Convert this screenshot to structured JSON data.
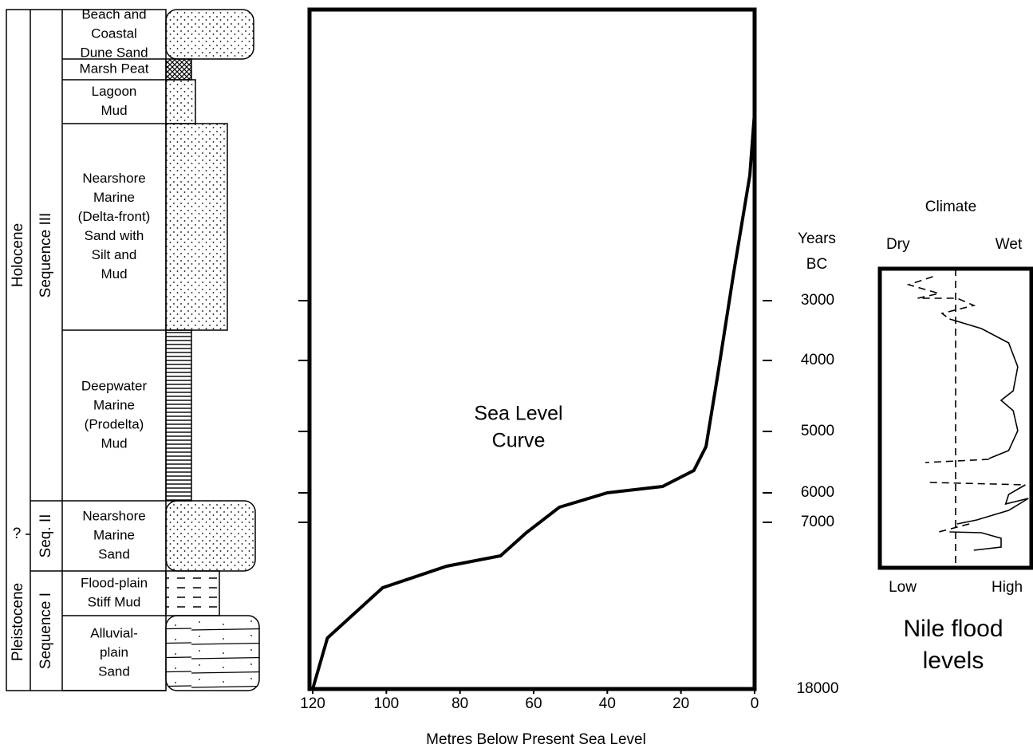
{
  "stratigraphy": {
    "eras": [
      {
        "label": "Holocene"
      },
      {
        "label": "?"
      },
      {
        "label": "Pleistocene"
      }
    ],
    "sequences": [
      {
        "label": "Sequence III"
      },
      {
        "label": "Seq. II"
      },
      {
        "label": "Sequence I"
      }
    ],
    "units": [
      {
        "lines": [
          "Beach and",
          "Coastal",
          "Dune Sand"
        ]
      },
      {
        "lines": [
          "Marsh Peat"
        ]
      },
      {
        "lines": [
          "Lagoon",
          "Mud"
        ]
      },
      {
        "lines": [
          "Nearshore",
          "Marine",
          "(Delta-front)",
          "Sand with",
          "Silt and",
          "Mud"
        ]
      },
      {
        "lines": [
          "Deepwater",
          "Marine",
          "(Prodelta)",
          "Mud"
        ]
      },
      {
        "lines": [
          "Nearshore",
          "Marine",
          "Sand"
        ]
      },
      {
        "lines": [
          "Flood-plain",
          "Stiff Mud"
        ]
      },
      {
        "lines": [
          "Alluvial-",
          "plain",
          "Sand"
        ]
      }
    ]
  },
  "chart_data": [
    {
      "type": "line",
      "title": [
        "Sea Level",
        "Curve"
      ],
      "xlabel": "Metres Below Present Sea Level",
      "ylabel": [
        "Years",
        "BC"
      ],
      "xlim": [
        120,
        0
      ],
      "xticks": [
        120,
        100,
        80,
        60,
        40,
        20,
        0
      ],
      "ylim": [
        18000,
        0
      ],
      "yticks": [
        3000,
        4000,
        5000,
        6000,
        7000,
        18000
      ],
      "series": [
        {
          "color": "#000000",
          "x": [
            120,
            116,
            101,
            83.6,
            69,
            62,
            53,
            40,
            25,
            16.5,
            13.2,
            10,
            5.6,
            1.3,
            0
          ],
          "values": [
            18000,
            14630,
            11315,
            9893,
            9210,
            7684,
            6486,
            6000,
            5896,
            5636,
            5247,
            4202,
            2696,
            1709,
            1052
          ]
        }
      ]
    },
    {
      "type": "line",
      "title": [
        "Nile flood",
        "levels"
      ],
      "x2label": "Climate",
      "x2ticks": [
        {
          "value": 0.12,
          "label": "Dry"
        },
        {
          "value": 0.85,
          "label": "Wet"
        }
      ],
      "xlim": [
        0,
        1
      ],
      "xticks": [
        {
          "value": 0.15,
          "label": "Low"
        },
        {
          "value": 0.84,
          "label": "High"
        }
      ],
      "ylim": [
        10000,
        2671
      ],
      "series": [
        {
          "color": "#000000",
          "dashed": true,
          "x": [
            0.35,
            0.19,
            0.39,
            0.25,
            0.51,
            0.62,
            0.41,
            0.46
          ],
          "values": [
            2753,
            2836,
            2926,
            2975,
            2975,
            3080,
            3213,
            3307
          ]
        },
        {
          "color": "#000000",
          "dashed": false,
          "x": [
            0.46,
            0.67,
            0.85,
            0.91,
            0.88,
            0.8,
            0.88,
            0.91,
            0.85,
            0.72
          ],
          "values": [
            3307,
            3467,
            3707,
            4090,
            4427,
            4562,
            4708,
            4989,
            5312,
            5442
          ]
        },
        {
          "color": "#000000",
          "dashed": true,
          "x": [
            0.72,
            0.3
          ],
          "values": [
            5455,
            5507
          ]
        },
        {
          "color": "#000000",
          "dashed": true,
          "x": [
            0.33,
            0.96
          ],
          "values": [
            5831,
            5870
          ]
        },
        {
          "color": "#000000",
          "dashed": false,
          "x": [
            0.96,
            0.85,
            0.83,
            0.98,
            0.85,
            0.64,
            0.51
          ],
          "values": [
            5870,
            6054,
            6378,
            6189,
            6595,
            6919,
            7105
          ]
        },
        {
          "color": "#000000",
          "dashed": true,
          "x": [
            0.59,
            0.39
          ],
          "values": [
            7105,
            7632
          ]
        },
        {
          "color": "#000000",
          "dashed": false,
          "x": [
            0.46,
            0.67,
            0.8,
            0.8,
            0.62
          ],
          "values": [
            7632,
            7684,
            8053,
            8632,
            8842
          ]
        }
      ]
    }
  ]
}
